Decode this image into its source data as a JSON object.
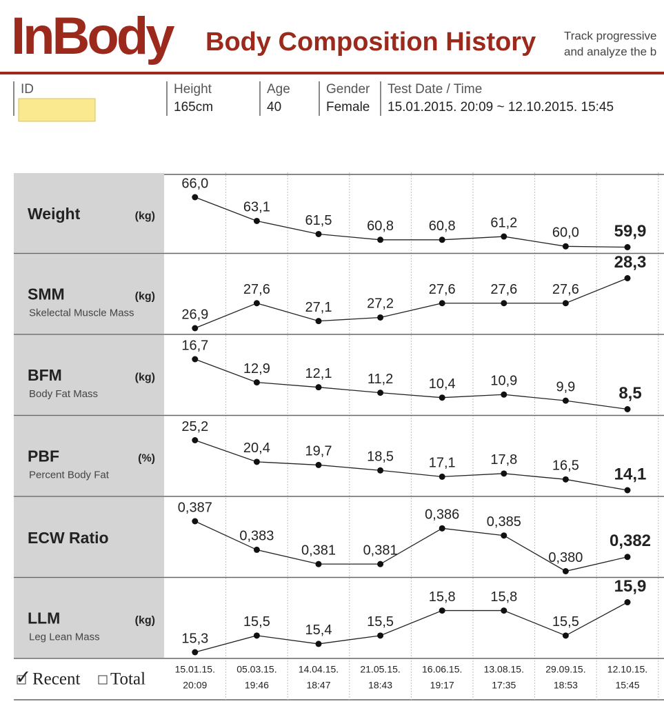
{
  "header": {
    "logo": "InBody",
    "title": "Body Composition History",
    "note_lines": [
      "Track progressive",
      "and analyze the b"
    ]
  },
  "info": [
    {
      "label": "ID",
      "value": null
    },
    {
      "label": "Height",
      "value": "165cm"
    },
    {
      "label": "Age",
      "value": "40"
    },
    {
      "label": "Gender",
      "value": "Female"
    },
    {
      "label": "Test Date / Time",
      "value": "15.01.2015. 20:09 ~ 12.10.2015. 15:45"
    }
  ],
  "dates": [
    [
      "15.01.15.",
      "20:09"
    ],
    [
      "05.03.15.",
      "19:46"
    ],
    [
      "14.04.15.",
      "18:47"
    ],
    [
      "21.05.15.",
      "18:43"
    ],
    [
      "16.06.15.",
      "19:17"
    ],
    [
      "13.08.15.",
      "17:35"
    ],
    [
      "29.09.15.",
      "18:53"
    ],
    [
      "12.10.15.",
      "15:45"
    ]
  ],
  "rows": [
    {
      "name": "Weight",
      "unit": "(kg)",
      "subtitle": null,
      "values": [
        66.0,
        63.1,
        61.5,
        60.8,
        60.8,
        61.2,
        60.0,
        59.9
      ],
      "value_labels": [
        "66,0",
        "63,1",
        "61,5",
        "60,8",
        "60,8",
        "61,2",
        "60,0",
        "59,9"
      ]
    },
    {
      "name": "SMM",
      "unit": "(kg)",
      "subtitle": "Skelectal Muscle Mass",
      "values": [
        26.9,
        27.6,
        27.1,
        27.2,
        27.6,
        27.6,
        27.6,
        28.3
      ],
      "value_labels": [
        "26,9",
        "27,6",
        "27,1",
        "27,2",
        "27,6",
        "27,6",
        "27,6",
        "28,3"
      ]
    },
    {
      "name": "BFM",
      "unit": "(kg)",
      "subtitle": "Body Fat Mass",
      "values": [
        16.7,
        12.9,
        12.1,
        11.2,
        10.4,
        10.9,
        9.9,
        8.5
      ],
      "value_labels": [
        "16,7",
        "12,9",
        "12,1",
        "11,2",
        "10,4",
        "10,9",
        "9,9",
        "8,5"
      ]
    },
    {
      "name": "PBF",
      "unit": "(%)",
      "subtitle": "Percent Body Fat",
      "values": [
        25.2,
        20.4,
        19.7,
        18.5,
        17.1,
        17.8,
        16.5,
        14.1
      ],
      "value_labels": [
        "25,2",
        "20,4",
        "19,7",
        "18,5",
        "17,1",
        "17,8",
        "16,5",
        "14,1"
      ]
    },
    {
      "name": "ECW Ratio",
      "unit": null,
      "subtitle": null,
      "values": [
        0.387,
        0.383,
        0.381,
        0.381,
        0.386,
        0.385,
        0.38,
        0.382
      ],
      "value_labels": [
        "0,387",
        "0,383",
        "0,381",
        "0,381",
        "0,386",
        "0,385",
        "0,380",
        "0,382"
      ]
    },
    {
      "name": "LLM",
      "unit": "(kg)",
      "subtitle": "Leg Lean Mass",
      "values": [
        15.3,
        15.5,
        15.4,
        15.5,
        15.8,
        15.8,
        15.5,
        15.9
      ],
      "value_labels": [
        "15,3",
        "15,5",
        "15,4",
        "15,5",
        "15,8",
        "15,8",
        "15,5",
        "15,9"
      ]
    }
  ],
  "footer": {
    "recent": "Recent",
    "total": "Total"
  }
}
